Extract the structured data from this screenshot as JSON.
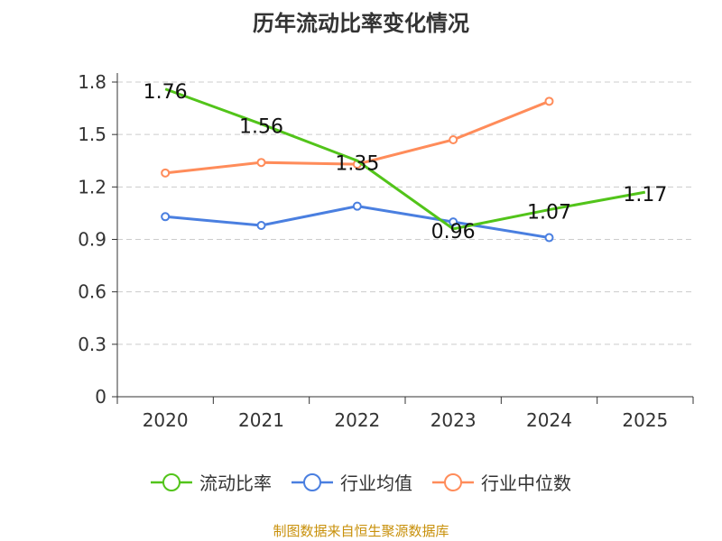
{
  "chart_data": {
    "type": "line",
    "title": "历年流动比率变化情况",
    "categories": [
      "2020",
      "2021",
      "2022",
      "2023",
      "2024",
      "2025"
    ],
    "ylim": [
      0,
      1.8
    ],
    "yticks": [
      "0",
      "0.3",
      "0.6",
      "0.9",
      "1.2",
      "1.5",
      "1.8"
    ],
    "grid": true,
    "legend_position": "bottom",
    "series": [
      {
        "name": "流动比率",
        "color": "#52c41a",
        "values": [
          1.76,
          1.56,
          1.35,
          0.96,
          1.07,
          1.17
        ],
        "labels": [
          "1.76",
          "1.56",
          "1.35",
          "0.96",
          "1.07",
          "1.17"
        ]
      },
      {
        "name": "行业均值",
        "color": "#4a7fe0",
        "values": [
          1.03,
          0.98,
          1.09,
          1.0,
          0.91,
          null
        ]
      },
      {
        "name": "行业中位数",
        "color": "#ff8c5a",
        "values": [
          1.28,
          1.34,
          1.33,
          1.47,
          1.69,
          null
        ]
      }
    ]
  },
  "source": "制图数据来自恒生聚源数据库"
}
